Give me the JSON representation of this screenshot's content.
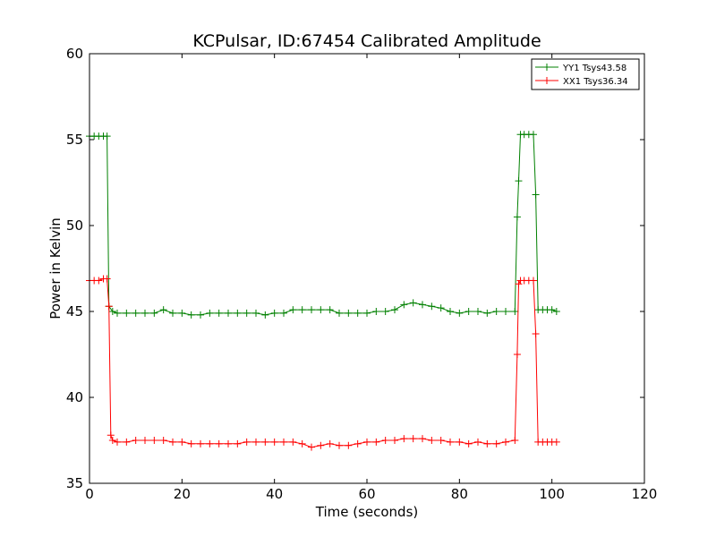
{
  "chart_data": {
    "type": "line",
    "title": "KCPulsar, ID:67454 Calibrated Amplitude",
    "xlabel": "Time (seconds)",
    "ylabel": "Power in Kelvin",
    "xlim": [
      0,
      120
    ],
    "ylim": [
      35,
      60
    ],
    "xticks": [
      0,
      20,
      40,
      60,
      80,
      100,
      120
    ],
    "yticks": [
      35,
      40,
      45,
      50,
      55,
      60
    ],
    "grid": false,
    "legend_position": "top-right",
    "series": [
      {
        "name": "YY1 Tsys43.58",
        "color": "#008000",
        "marker": "+",
        "x": [
          0,
          1,
          2,
          3,
          3.8,
          4.2,
          5,
          6,
          8,
          10,
          12,
          14,
          16,
          18,
          20,
          22,
          24,
          26,
          28,
          30,
          32,
          34,
          36,
          38,
          40,
          42,
          44,
          46,
          48,
          50,
          52,
          54,
          56,
          58,
          60,
          62,
          64,
          66,
          68,
          70,
          72,
          74,
          76,
          78,
          80,
          82,
          84,
          86,
          88,
          90,
          92,
          92.5,
          92.8,
          93.2,
          94,
          95,
          96,
          96.5,
          97,
          98,
          99,
          100,
          101
        ],
        "y": [
          55.2,
          55.2,
          55.2,
          55.2,
          55.2,
          45.3,
          45.0,
          44.9,
          44.9,
          44.9,
          44.9,
          44.9,
          45.1,
          44.9,
          44.9,
          44.8,
          44.8,
          44.9,
          44.9,
          44.9,
          44.9,
          44.9,
          44.9,
          44.8,
          44.9,
          44.9,
          45.1,
          45.1,
          45.1,
          45.1,
          45.1,
          44.9,
          44.9,
          44.9,
          44.9,
          45.0,
          45.0,
          45.1,
          45.4,
          45.5,
          45.4,
          45.3,
          45.2,
          45.0,
          44.9,
          45.0,
          45.0,
          44.9,
          45.0,
          45.0,
          45.0,
          50.5,
          52.6,
          55.3,
          55.3,
          55.3,
          55.3,
          51.8,
          45.1,
          45.1,
          45.1,
          45.1,
          45.0
        ]
      },
      {
        "name": "XX1 Tsys36.34",
        "color": "#ff0000",
        "marker": "+",
        "x": [
          0,
          1,
          2,
          3,
          3.8,
          4.2,
          4.6,
          5,
          6,
          8,
          10,
          12,
          14,
          16,
          18,
          20,
          22,
          24,
          26,
          28,
          30,
          32,
          34,
          36,
          38,
          40,
          42,
          44,
          46,
          48,
          50,
          52,
          54,
          56,
          58,
          60,
          62,
          64,
          66,
          68,
          70,
          72,
          74,
          76,
          78,
          80,
          82,
          84,
          86,
          88,
          90,
          92,
          92.5,
          92.8,
          93.2,
          94,
          95,
          96,
          96.5,
          97,
          98,
          99,
          100,
          101
        ],
        "y": [
          46.8,
          46.8,
          46.8,
          46.9,
          46.9,
          45.3,
          37.8,
          37.5,
          37.4,
          37.4,
          37.5,
          37.5,
          37.5,
          37.5,
          37.4,
          37.4,
          37.3,
          37.3,
          37.3,
          37.3,
          37.3,
          37.3,
          37.4,
          37.4,
          37.4,
          37.4,
          37.4,
          37.4,
          37.3,
          37.1,
          37.2,
          37.3,
          37.2,
          37.2,
          37.3,
          37.4,
          37.4,
          37.5,
          37.5,
          37.6,
          37.6,
          37.6,
          37.5,
          37.5,
          37.4,
          37.4,
          37.3,
          37.4,
          37.3,
          37.3,
          37.4,
          37.5,
          42.5,
          46.6,
          46.8,
          46.8,
          46.8,
          46.8,
          43.7,
          37.4,
          37.4,
          37.4,
          37.4,
          37.4
        ]
      }
    ]
  }
}
